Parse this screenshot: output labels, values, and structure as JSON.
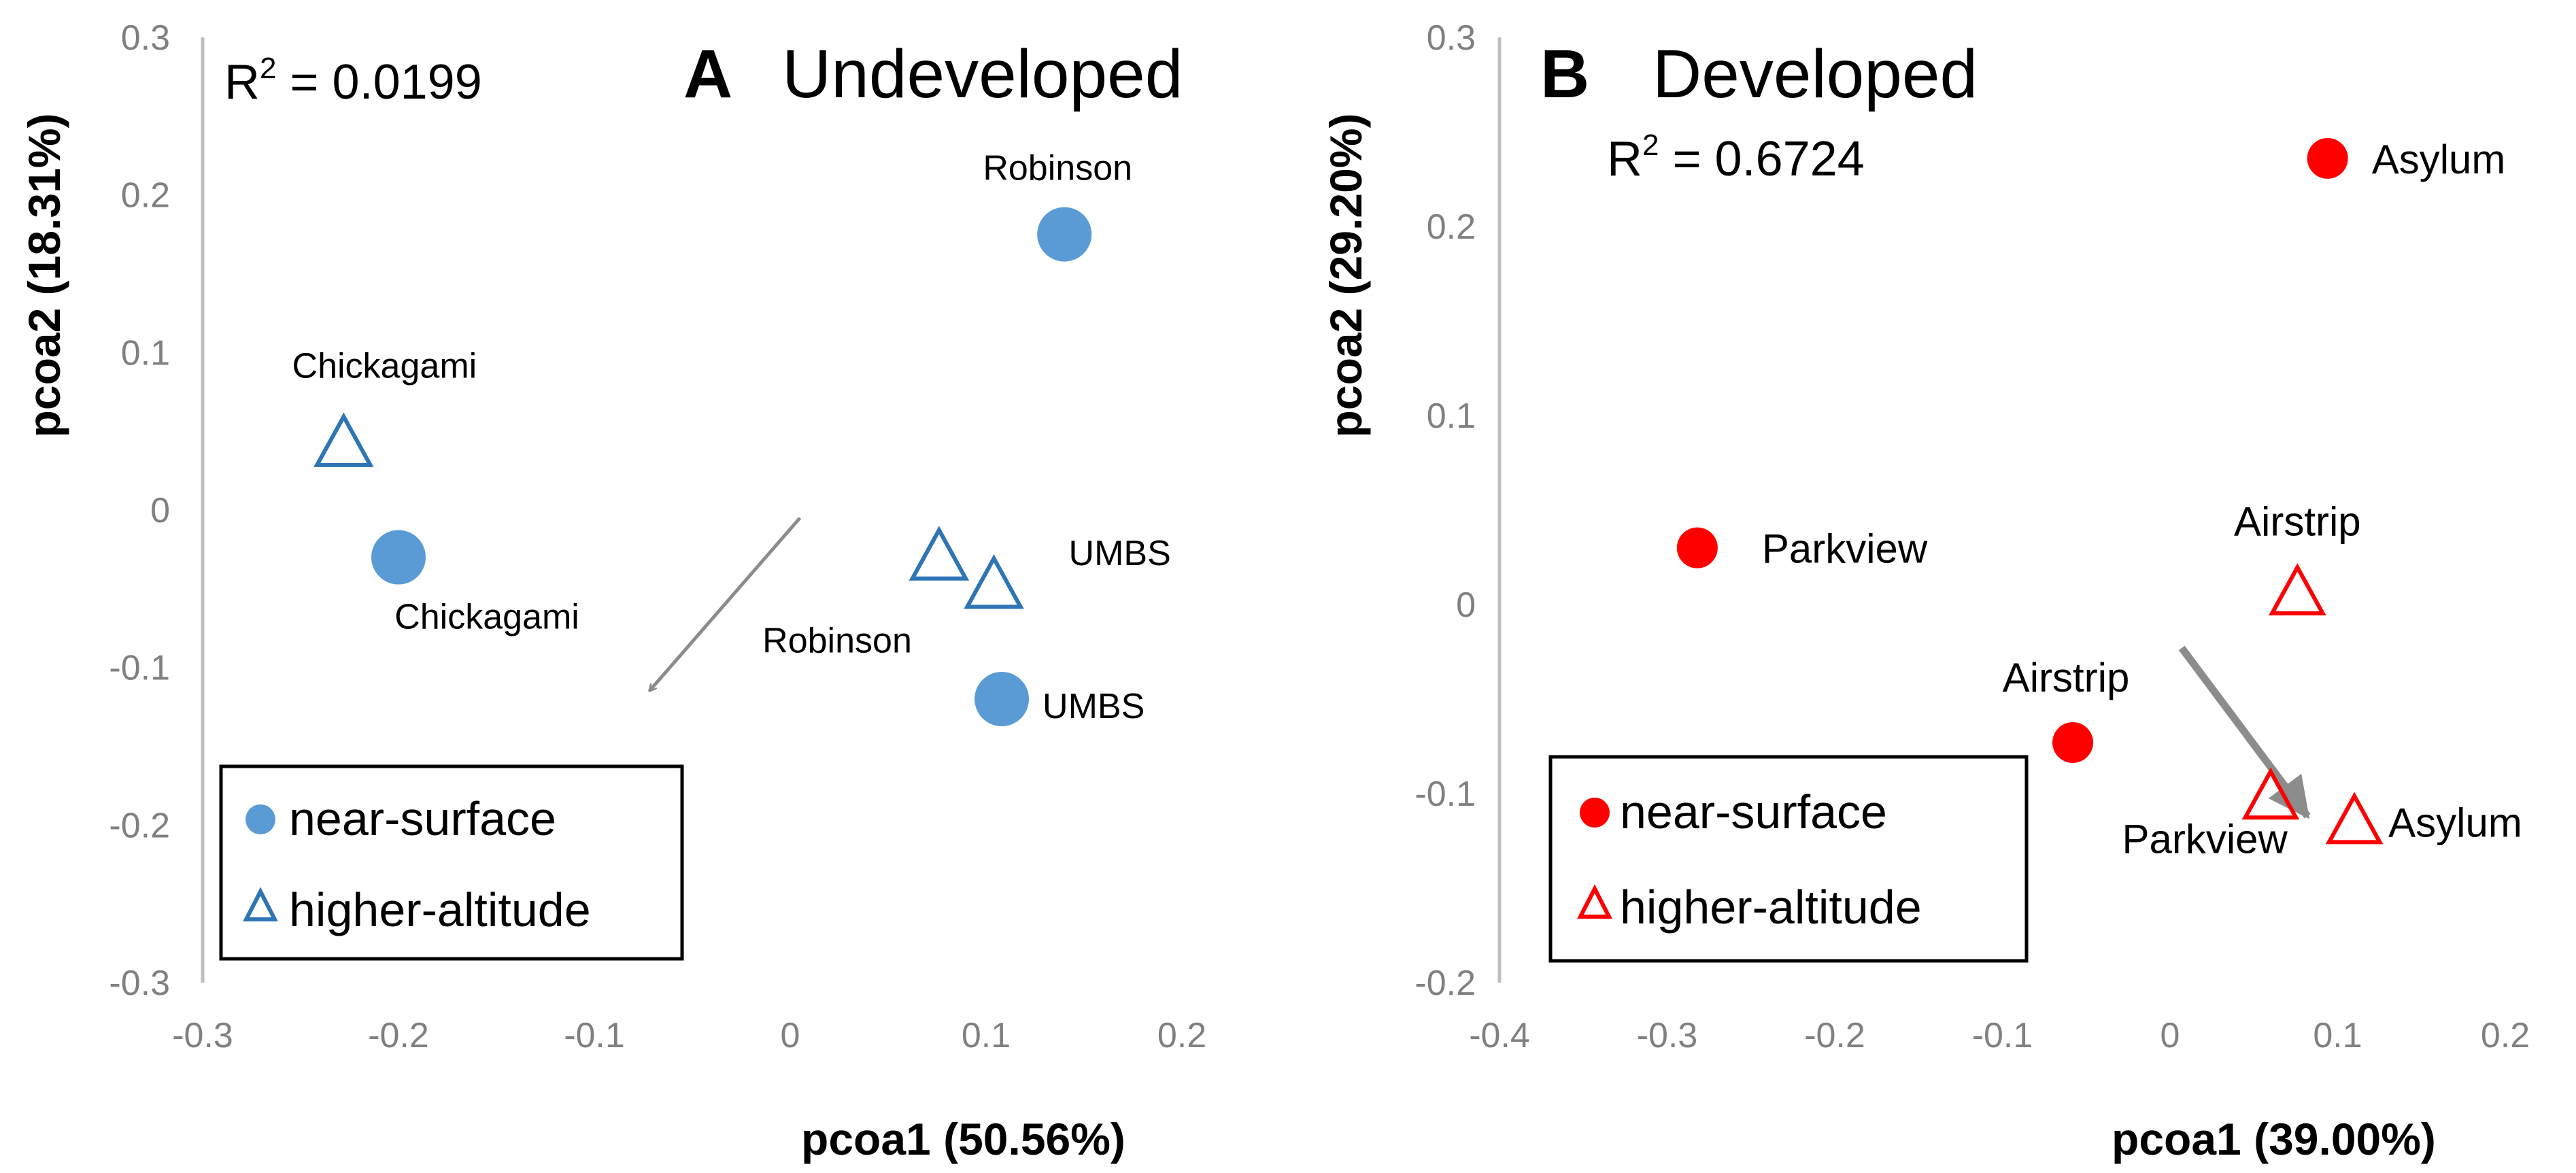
{
  "chart_data": [
    {
      "type": "scatter",
      "panel_letter": "A",
      "title": "Undeveloped",
      "r2_prefix": "R",
      "r2_sup": "2",
      "r2_value": " = 0.0199",
      "xlabel": "pcoa1 (50.56%)",
      "ylabel": "pcoa2 (18.31%)",
      "xlim": [
        -0.3,
        0.2
      ],
      "ylim": [
        -0.3,
        0.3
      ],
      "x_ticks": [
        -0.3,
        -0.2,
        -0.1,
        0,
        0.1,
        0.2
      ],
      "x_tick_labels": [
        "-0.3",
        "-0.2",
        "-0.1",
        "0",
        "0.1",
        "0.2"
      ],
      "y_ticks": [
        0.3,
        0.2,
        0.1,
        0,
        -0.1,
        -0.2,
        -0.3
      ],
      "y_tick_labels": [
        "0.3",
        "0.2",
        "0.1",
        "0",
        "-0.1",
        "-0.2",
        "-0.3"
      ],
      "color": "#5b9bd5",
      "tri_color": "#2e75b6",
      "legend": {
        "near": "near-surface",
        "high": "higher-altitude"
      },
      "series": [
        {
          "name": "near-surface",
          "marker": "circle",
          "points": [
            {
              "x": 0.14,
              "y": 0.175,
              "label": "Robinson"
            },
            {
              "x": -0.2,
              "y": -0.03,
              "label": "Chickagami"
            },
            {
              "x": 0.108,
              "y": -0.12,
              "label": "UMBS"
            }
          ]
        },
        {
          "name": "higher-altitude",
          "marker": "triangle",
          "points": [
            {
              "x": -0.228,
              "y": 0.042,
              "label": "Chickagami"
            },
            {
              "x": 0.076,
              "y": -0.03,
              "label": "Robinson"
            },
            {
              "x": 0.104,
              "y": -0.048,
              "label": "UMBS"
            }
          ]
        }
      ],
      "arrow": {
        "from": [
          0.005,
          -0.005
        ],
        "to": [
          -0.072,
          -0.115
        ]
      }
    },
    {
      "type": "scatter",
      "panel_letter": "B",
      "title": "Developed",
      "r2_prefix": "R",
      "r2_sup": "2",
      "r2_value": " = 0.6724",
      "xlabel": "pcoa1 (39.00%)",
      "ylabel": "pcoa2 (29.20%)",
      "xlim": [
        -0.4,
        0.2
      ],
      "ylim": [
        -0.2,
        0.3
      ],
      "x_ticks": [
        -0.4,
        -0.3,
        -0.2,
        -0.1,
        0,
        0.1,
        0.2
      ],
      "x_tick_labels": [
        "-0.4",
        "-0.3",
        "-0.2",
        "-0.1",
        "0",
        "0.1",
        "0.2"
      ],
      "y_ticks": [
        0.3,
        0.2,
        0.1,
        0,
        -0.1,
        -0.2
      ],
      "y_tick_labels": [
        "0.3",
        "0.2",
        "0.1",
        "0",
        "-0.1",
        "-0.2"
      ],
      "color": "#ff0000",
      "tri_color": "#ff0000",
      "legend": {
        "near": "near-surface",
        "high": "higher-altitude"
      },
      "series": [
        {
          "name": "near-surface",
          "marker": "circle",
          "points": [
            {
              "x": 0.094,
              "y": 0.236,
              "label": "Asylum"
            },
            {
              "x": -0.282,
              "y": 0.03,
              "label": "Parkview"
            },
            {
              "x": -0.058,
              "y": -0.073,
              "label": "Airstrip"
            }
          ]
        },
        {
          "name": "higher-altitude",
          "marker": "triangle",
          "points": [
            {
              "x": 0.076,
              "y": 0.006,
              "label": "Airstrip"
            },
            {
              "x": 0.06,
              "y": -0.102,
              "label": "Parkview"
            },
            {
              "x": 0.11,
              "y": -0.115,
              "label": "Asylum"
            }
          ]
        }
      ],
      "arrow": {
        "from": [
          0.007,
          -0.023
        ],
        "to": [
          0.082,
          -0.112
        ]
      }
    }
  ]
}
